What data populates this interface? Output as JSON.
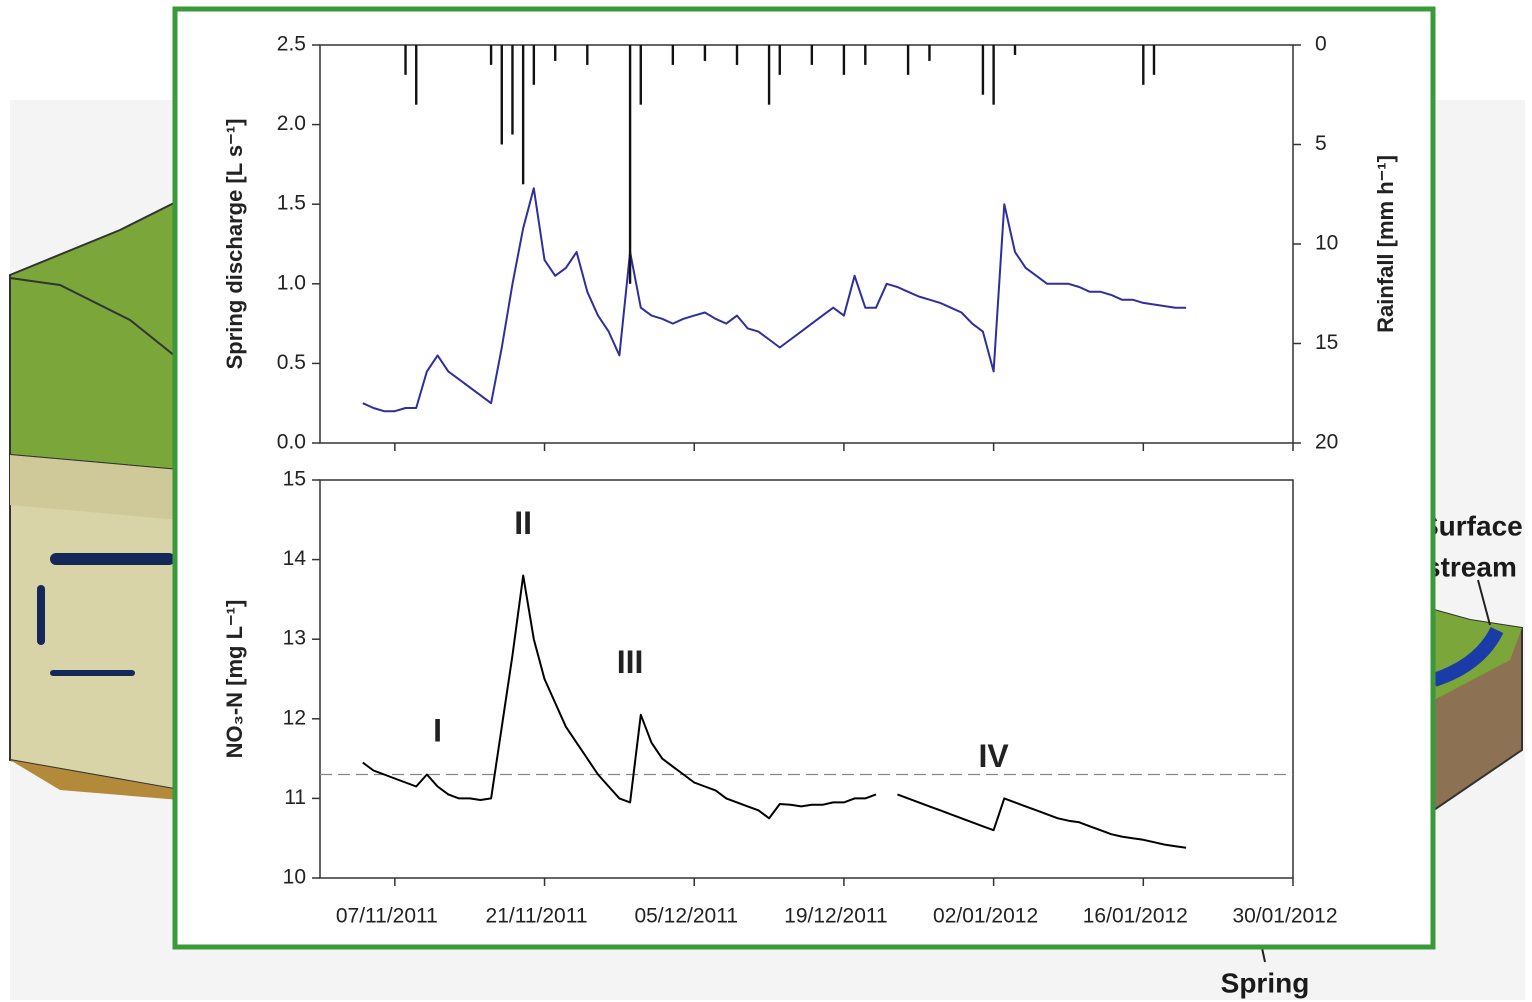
{
  "background": {
    "labels": [
      "Surface",
      "stream",
      "Spring"
    ]
  },
  "chart_data": [
    {
      "type": "line",
      "ylabel": "Spring discharge [L s⁻¹]",
      "y2label": "Rainfall [mm h⁻¹]",
      "xlim": [
        "2011-10-31",
        "2012-01-30"
      ],
      "xticks": [
        "2011-11-07",
        "2011-11-21",
        "2011-12-05",
        "2011-12-19",
        "2012-01-02",
        "2012-01-16",
        "2012-01-30"
      ],
      "ylim": [
        0,
        2.5
      ],
      "yticks": [
        {
          "value": 0,
          "label": "0.0"
        },
        0.5,
        {
          "value": 1,
          "label": "1.0"
        },
        1.5,
        {
          "value": 2,
          "label": "2.0"
        },
        2.5
      ],
      "y2lim": [
        0,
        20
      ],
      "y2ticks": [
        0,
        5,
        10,
        15,
        20
      ],
      "y2_inverted": true,
      "series": [
        {
          "type": "line",
          "color": "#2e2e9e",
          "x": [
            "2011-11-04",
            "2011-11-05",
            "2011-11-06",
            "2011-11-07",
            "2011-11-08",
            "2011-11-09",
            "2011-11-10",
            "2011-11-11",
            "2011-11-12",
            "2011-11-13",
            "2011-11-14",
            "2011-11-15",
            "2011-11-16",
            "2011-11-17",
            "2011-11-18",
            "2011-11-19",
            "2011-11-20",
            "2011-11-21",
            "2011-11-22",
            "2011-11-23",
            "2011-11-24",
            "2011-11-25",
            "2011-11-26",
            "2011-11-27",
            "2011-11-28",
            "2011-11-29",
            "2011-11-30",
            "2011-12-01",
            "2011-12-02",
            "2011-12-03",
            "2011-12-04",
            "2011-12-05",
            "2011-12-06",
            "2011-12-07",
            "2011-12-08",
            "2011-12-09",
            "2011-12-10",
            "2011-12-11",
            "2011-12-12",
            "2011-12-13",
            "2011-12-14",
            "2011-12-15",
            "2011-12-16",
            "2011-12-17",
            "2011-12-18",
            "2011-12-19",
            "2011-12-20",
            "2011-12-21",
            "2011-12-22",
            "2011-12-23",
            "2011-12-24",
            "2011-12-25",
            "2011-12-26",
            "2011-12-27",
            "2011-12-28",
            "2011-12-29",
            "2011-12-30",
            "2011-12-31",
            "2012-01-01",
            "2012-01-02",
            "2012-01-03",
            "2012-01-04",
            "2012-01-05",
            "2012-01-06",
            "2012-01-07",
            "2012-01-08",
            "2012-01-09",
            "2012-01-10",
            "2012-01-11",
            "2012-01-12",
            "2012-01-13",
            "2012-01-14",
            "2012-01-15",
            "2012-01-16",
            "2012-01-17",
            "2012-01-18",
            "2012-01-19",
            "2012-01-20"
          ],
          "values": [
            0.25,
            0.22,
            0.2,
            0.2,
            0.22,
            0.22,
            0.45,
            0.55,
            0.45,
            0.4,
            0.35,
            0.3,
            0.25,
            0.6,
            1.0,
            1.35,
            1.6,
            1.15,
            1.05,
            1.1,
            1.2,
            0.95,
            0.8,
            0.7,
            0.55,
            1.2,
            0.85,
            0.8,
            0.78,
            0.75,
            0.78,
            0.8,
            0.82,
            0.78,
            0.75,
            0.8,
            0.72,
            0.7,
            0.65,
            0.6,
            0.65,
            0.7,
            0.75,
            0.8,
            0.85,
            0.8,
            1.05,
            0.85,
            0.85,
            1.0,
            0.98,
            0.95,
            0.92,
            0.9,
            0.88,
            0.85,
            0.82,
            0.75,
            0.7,
            0.45,
            1.5,
            1.2,
            1.1,
            1.05,
            1.0,
            1.0,
            1.0,
            0.98,
            0.95,
            0.95,
            0.93,
            0.9,
            0.9,
            0.88,
            0.87,
            0.86,
            0.85,
            0.85
          ]
        },
        {
          "type": "bar",
          "axis": "y2",
          "color": "#111111",
          "x": [
            "2011-11-08",
            "2011-11-09",
            "2011-11-16",
            "2011-11-17",
            "2011-11-18",
            "2011-11-19",
            "2011-11-20",
            "2011-11-22",
            "2011-11-25",
            "2011-11-29",
            "2011-11-30",
            "2011-12-03",
            "2011-12-06",
            "2011-12-09",
            "2011-12-12",
            "2011-12-13",
            "2011-12-16",
            "2011-12-19",
            "2011-12-21",
            "2011-12-25",
            "2011-12-27",
            "2012-01-01",
            "2012-01-02",
            "2012-01-04",
            "2012-01-16",
            "2012-01-17"
          ],
          "values": [
            1.5,
            3,
            1,
            5,
            4.5,
            7,
            2,
            0.8,
            1,
            12,
            3,
            1,
            0.8,
            1,
            3,
            1.5,
            1,
            1.5,
            1,
            1.5,
            0.8,
            2.5,
            3,
            0.5,
            2,
            1.5
          ]
        }
      ]
    },
    {
      "type": "line",
      "ylabel": "NO₃-N [mg L⁻¹]",
      "xlim": [
        "2011-10-31",
        "2012-01-30"
      ],
      "xticks": [
        {
          "value": "2011-11-07",
          "label": "07/11/2011"
        },
        {
          "value": "2011-11-21",
          "label": "21/11/2011"
        },
        {
          "value": "2011-12-05",
          "label": "05/12/2011"
        },
        {
          "value": "2011-12-19",
          "label": "19/12/2011"
        },
        {
          "value": "2012-01-02",
          "label": "02/01/2012"
        },
        {
          "value": "2012-01-16",
          "label": "16/01/2012"
        },
        {
          "value": "2012-01-30",
          "label": "30/01/2012"
        }
      ],
      "ylim": [
        10,
        15
      ],
      "yticks": [
        10,
        11,
        12,
        13,
        14,
        15
      ],
      "hline": 11.3,
      "annotations": [
        {
          "text": "I",
          "x": "2011-11-11",
          "y": 11.82
        },
        {
          "text": "II",
          "x": "2011-11-19",
          "y": 14.43
        },
        {
          "text": "III",
          "x": "2011-11-29",
          "y": 12.68
        },
        {
          "text": "IV",
          "x": "2012-01-02",
          "y": 11.5
        }
      ],
      "series": [
        {
          "type": "line",
          "color": "#000000",
          "x": [
            "2011-11-04",
            "2011-11-05",
            "2011-11-06",
            "2011-11-07",
            "2011-11-08",
            "2011-11-09",
            "2011-11-10",
            "2011-11-11",
            "2011-11-12",
            "2011-11-13",
            "2011-11-14",
            "2011-11-15",
            "2011-11-16",
            "2011-11-17",
            "2011-11-18",
            "2011-11-19",
            "2011-11-20",
            "2011-11-21",
            "2011-11-22",
            "2011-11-23",
            "2011-11-24",
            "2011-11-25",
            "2011-11-26",
            "2011-11-27",
            "2011-11-28",
            "2011-11-29",
            "2011-11-30",
            "2011-12-01",
            "2011-12-02",
            "2011-12-03",
            "2011-12-04",
            "2011-12-05",
            "2011-12-06",
            "2011-12-07",
            "2011-12-08",
            "2011-12-09",
            "2011-12-10",
            "2011-12-11",
            "2011-12-12",
            "2011-12-13",
            "2011-12-14",
            "2011-12-15",
            "2011-12-16",
            "2011-12-17",
            "2011-12-18",
            "2011-12-19",
            "2011-12-20",
            "2011-12-21",
            "2011-12-22",
            "2011-12-23",
            "2011-12-24",
            "2011-12-25",
            "2011-12-26",
            "2011-12-27",
            "2011-12-28",
            "2011-12-29",
            "2011-12-30",
            "2011-12-31",
            "2012-01-01",
            "2012-01-02",
            "2012-01-03",
            "2012-01-04",
            "2012-01-05",
            "2012-01-06",
            "2012-01-07",
            "2012-01-08",
            "2012-01-09",
            "2012-01-10",
            "2012-01-11",
            "2012-01-12",
            "2012-01-13",
            "2012-01-14",
            "2012-01-15",
            "2012-01-16",
            "2012-01-17",
            "2012-01-18",
            "2012-01-19",
            "2012-01-20"
          ],
          "values": [
            11.45,
            11.35,
            11.3,
            11.25,
            11.2,
            11.15,
            11.3,
            11.15,
            11.05,
            11.0,
            11.0,
            10.98,
            11.0,
            11.9,
            12.8,
            13.8,
            13.0,
            12.5,
            12.2,
            11.9,
            11.7,
            11.5,
            11.3,
            11.15,
            11.0,
            10.95,
            12.05,
            11.7,
            11.5,
            11.4,
            11.3,
            11.2,
            11.15,
            11.1,
            11.0,
            10.95,
            10.9,
            10.85,
            10.75,
            10.93,
            10.92,
            10.9,
            10.92,
            10.92,
            10.95,
            10.95,
            11.0,
            11.0,
            11.05,
            null,
            11.05,
            11.0,
            10.95,
            10.9,
            10.85,
            10.8,
            10.75,
            10.7,
            10.65,
            10.6,
            11.0,
            10.95,
            10.9,
            10.85,
            10.8,
            10.75,
            10.72,
            10.7,
            10.65,
            10.6,
            10.55,
            10.52,
            10.5,
            10.48,
            10.45,
            10.42,
            10.4,
            10.38
          ]
        }
      ]
    }
  ]
}
